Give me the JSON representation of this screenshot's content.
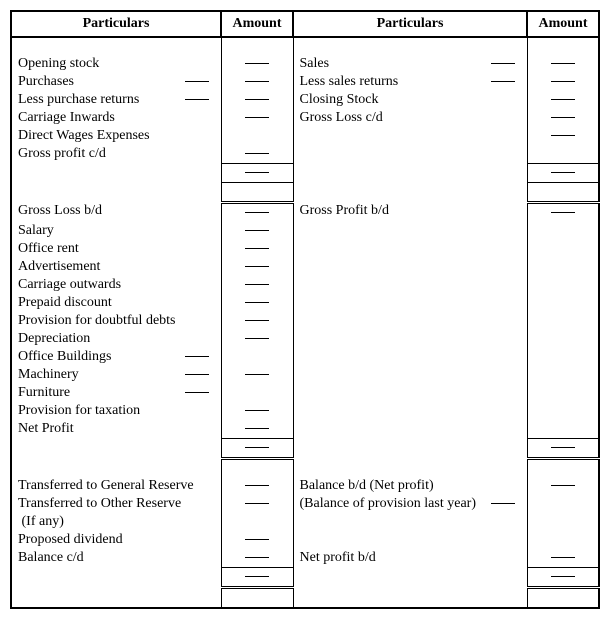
{
  "headers": {
    "particulars_l": "Particulars",
    "amount_l": "Amount",
    "particulars_r": "Particulars",
    "amount_r": "Amount"
  },
  "s1": {
    "left": [
      {
        "label": "Opening stock",
        "inline_dash": false,
        "amount_dash": true
      },
      {
        "label": "Purchases",
        "inline_dash": true,
        "amount_dash": true
      },
      {
        "label": "Less purchase returns",
        "inline_dash": true,
        "amount_dash": true
      },
      {
        "label": "Carriage Inwards",
        "inline_dash": false,
        "amount_dash": true
      },
      {
        "label": "Direct Wages Expenses",
        "inline_dash": false,
        "amount_dash": false
      },
      {
        "label": "Gross profit c/d",
        "inline_dash": false,
        "amount_dash": true
      }
    ],
    "right": [
      {
        "label": "Sales",
        "inline_dash": true,
        "amount_dash": true
      },
      {
        "label": "Less sales returns",
        "inline_dash": true,
        "amount_dash": true
      },
      {
        "label": "Closing Stock",
        "inline_dash": false,
        "amount_dash": true
      },
      {
        "label": "Gross Loss c/d",
        "inline_dash": false,
        "amount_dash": true
      },
      {
        "label": "",
        "inline_dash": false,
        "amount_dash": true
      },
      {
        "label": "",
        "inline_dash": false,
        "amount_dash": false
      }
    ]
  },
  "s2": {
    "left": [
      {
        "label": "Gross Loss b/d",
        "inline_dash": false,
        "amount_dash": true
      },
      {
        "label": "Salary",
        "inline_dash": false,
        "amount_dash": true
      },
      {
        "label": "Office rent",
        "inline_dash": false,
        "amount_dash": true
      },
      {
        "label": "Advertisement",
        "inline_dash": false,
        "amount_dash": true
      },
      {
        "label": "Carriage outwards",
        "inline_dash": false,
        "amount_dash": true
      },
      {
        "label": "Prepaid discount",
        "inline_dash": false,
        "amount_dash": true
      },
      {
        "label": "Provision for doubtful debts",
        "inline_dash": false,
        "amount_dash": true
      },
      {
        "label": "Depreciation",
        "inline_dash": false,
        "amount_dash": true
      },
      {
        "label": "Office Buildings",
        "inline_dash": true,
        "amount_dash": false
      },
      {
        "label": "Machinery",
        "inline_dash": true,
        "amount_dash": true
      },
      {
        "label": "Furniture",
        "inline_dash": true,
        "amount_dash": false
      },
      {
        "label": "Provision for taxation",
        "inline_dash": false,
        "amount_dash": true
      },
      {
        "label": "Net Profit",
        "inline_dash": false,
        "amount_dash": true
      }
    ],
    "right_first_label": "Gross Profit b/d"
  },
  "s3": {
    "left": [
      {
        "label": "Transferred to General Reserve",
        "inline_dash": false,
        "amount_dash": true
      },
      {
        "label": "Transferred to Other Reserve",
        "inline_dash": false,
        "amount_dash": true
      },
      {
        "label": " (If any)",
        "inline_dash": false,
        "amount_dash": false
      },
      {
        "label": "Proposed dividend",
        "inline_dash": false,
        "amount_dash": true
      },
      {
        "label": "Balance c/d",
        "inline_dash": false,
        "amount_dash": true
      }
    ],
    "right": [
      {
        "label": "Balance b/d (Net profit)",
        "inline_dash": false,
        "amount_dash": true
      },
      {
        "label": "(Balance of provision last year)",
        "inline_dash": false,
        "amount_dash": false,
        "inline_dash_override": true
      },
      {
        "label": "",
        "inline_dash": false,
        "amount_dash": false
      },
      {
        "label": "",
        "inline_dash": false,
        "amount_dash": false
      },
      {
        "label": "Net profit b/d",
        "inline_dash": false,
        "amount_dash": true
      }
    ]
  }
}
